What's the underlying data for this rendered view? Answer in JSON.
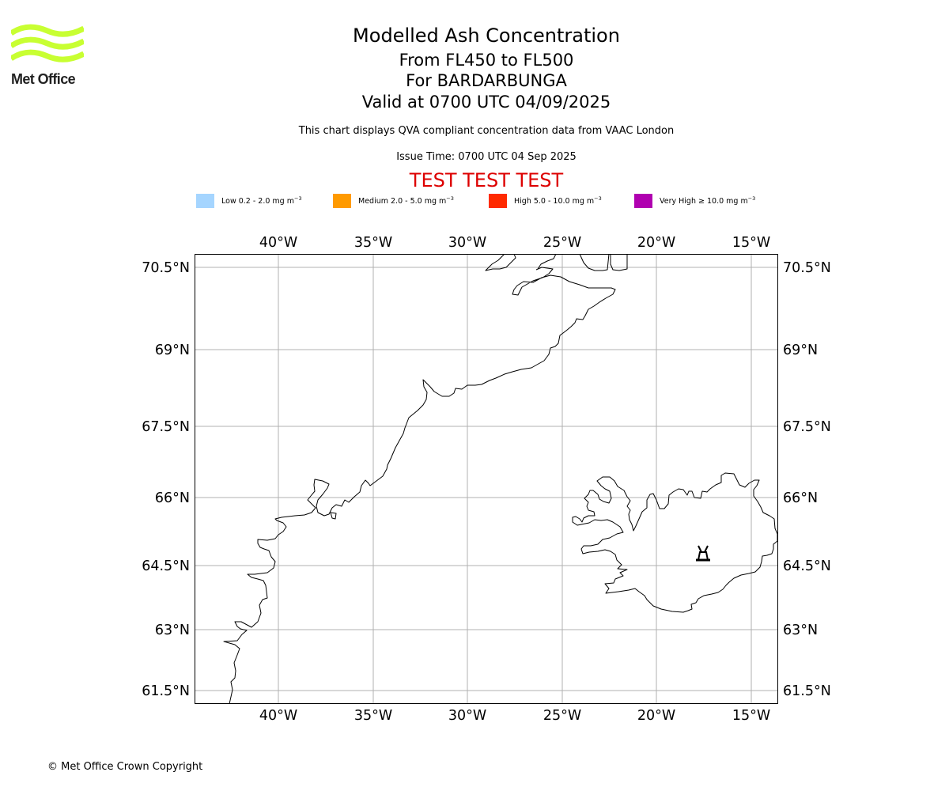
{
  "header": {
    "logo_text": "Met Office",
    "title": "Modelled Ash Concentration",
    "flight_levels": "From FL450 to FL500",
    "volcano": "For BARDARBUNGA",
    "valid_time": "Valid at 0700 UTC 04/09/2025",
    "compliance_note": "This chart displays QVA compliant concentration data from VAAC London",
    "issue_time": "Issue Time: 0700 UTC 04 Sep 2025",
    "test_banner": "TEST TEST TEST"
  },
  "legend": [
    {
      "text": "Low 0.2 - 2.0 mg m",
      "exp": "−3",
      "color": "#a5d5ff"
    },
    {
      "text": "Medium 2.0 - 5.0 mg m",
      "exp": "−3",
      "color": "#ff9a00"
    },
    {
      "text": "High 5.0 - 10.0 mg m",
      "exp": "−3",
      "color": "#ff2a00"
    },
    {
      "text": "Very High  ≥  10.0 mg m",
      "exp": "−3",
      "color": "#b000b0"
    }
  ],
  "map": {
    "lon_ticks": [
      "40°W",
      "35°W",
      "30°W",
      "25°W",
      "20°W",
      "15°W"
    ],
    "lat_ticks": [
      "70.5°N",
      "69°N",
      "67.5°N",
      "66°N",
      "64.5°N",
      "63°N",
      "61.5°N"
    ],
    "volcano_icon": "volcano-icon",
    "coastline_color": "#000000",
    "gridline_color": "#b0b0b0"
  },
  "footer": {
    "copyright": "© Met Office Crown Copyright"
  }
}
